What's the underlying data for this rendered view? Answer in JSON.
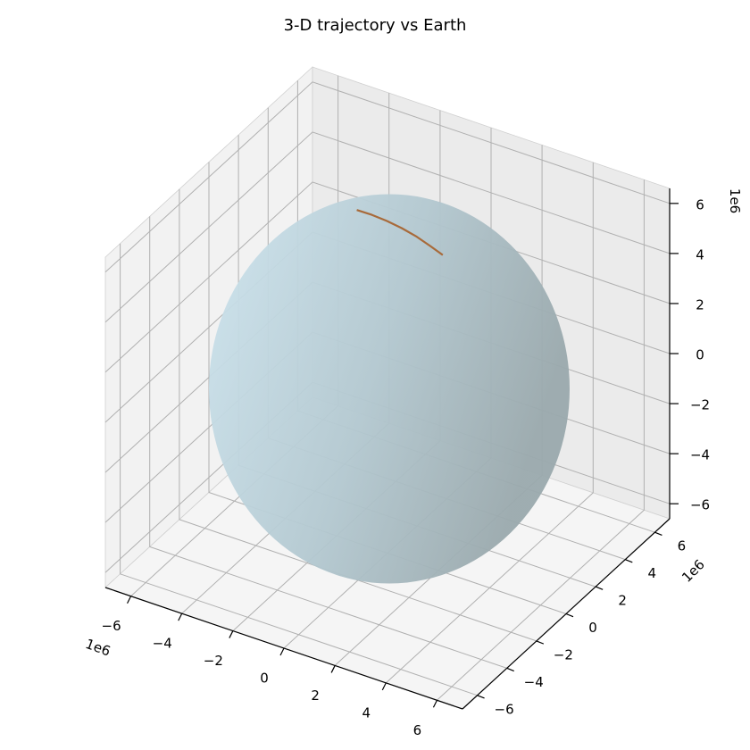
{
  "chart_data": {
    "type": "3d-line",
    "title": "3-D trajectory vs Earth",
    "axes": {
      "x": {
        "range": [
          -7000000,
          7000000
        ],
        "ticks": [
          -6,
          -4,
          -2,
          0,
          2,
          4,
          6
        ],
        "tick_labels": [
          "−6",
          "−4",
          "−2",
          "0",
          "2",
          "4",
          "6"
        ],
        "offset_label": "1e6"
      },
      "y": {
        "range": [
          -7000000,
          7000000
        ],
        "ticks": [
          -6,
          -4,
          -2,
          0,
          2,
          4,
          6
        ],
        "tick_labels": [
          "−6",
          "−4",
          "−2",
          "0",
          "2",
          "4",
          "6"
        ],
        "offset_label": "1e6"
      },
      "z": {
        "range": [
          -6600000,
          6600000
        ],
        "ticks": [
          -6,
          -4,
          -2,
          0,
          2,
          4,
          6
        ],
        "tick_labels": [
          "−6",
          "−4",
          "−2",
          "0",
          "2",
          "4",
          "6"
        ],
        "offset_label": "1e6"
      }
    },
    "grid": true,
    "surfaces": [
      {
        "shape": "sphere",
        "radius": 6371000,
        "color": "#add8e6",
        "alpha": 0.6
      }
    ],
    "series": [
      {
        "color": "#a86a3a",
        "points": [
          [
            -1900000,
            1200000,
            5800000
          ],
          [
            -1400000,
            1350000,
            5700000
          ],
          [
            -900000,
            1500000,
            5550000
          ],
          [
            -400000,
            1650000,
            5350000
          ],
          [
            100000,
            1800000,
            5100000
          ],
          [
            550000,
            1950000,
            4800000
          ],
          [
            950000,
            2100000,
            4500000
          ]
        ]
      }
    ]
  }
}
